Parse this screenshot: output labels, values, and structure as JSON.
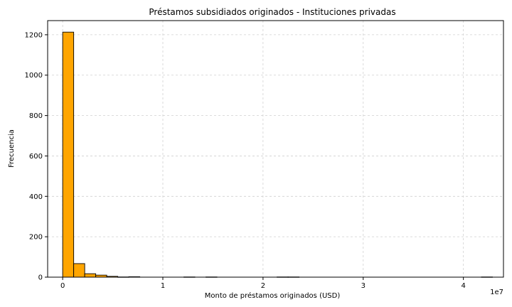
{
  "chart_data": {
    "type": "bar",
    "title": "Préstamos subsidiados originados - Instituciones privadas",
    "xlabel": "Monto de préstamos originados (USD)",
    "ylabel": "Frecuencia",
    "x_offset_label": "1e7",
    "x_scale_note": "x values in units of 1e7 USD",
    "xlim": [
      -0.15,
      4.4
    ],
    "ylim": [
      0,
      1270
    ],
    "x_ticks": [
      0,
      1,
      2,
      3,
      4
    ],
    "y_ticks": [
      0,
      200,
      400,
      600,
      800,
      1000,
      1200
    ],
    "grid": true,
    "bar_color": "#ffa500",
    "edge_color": "#000000",
    "bins": [
      {
        "x0": 0.0,
        "x1": 0.11,
        "count": 1213
      },
      {
        "x0": 0.11,
        "x1": 0.22,
        "count": 67
      },
      {
        "x0": 0.22,
        "x1": 0.33,
        "count": 17
      },
      {
        "x0": 0.33,
        "x1": 0.44,
        "count": 10
      },
      {
        "x0": 0.44,
        "x1": 0.55,
        "count": 4
      },
      {
        "x0": 0.55,
        "x1": 0.66,
        "count": 1
      },
      {
        "x0": 0.66,
        "x1": 0.77,
        "count": 2
      },
      {
        "x0": 1.21,
        "x1": 1.32,
        "count": 1
      },
      {
        "x0": 1.43,
        "x1": 1.54,
        "count": 1
      },
      {
        "x0": 2.14,
        "x1": 2.25,
        "count": 1
      },
      {
        "x0": 2.25,
        "x1": 2.36,
        "count": 1
      },
      {
        "x0": 4.18,
        "x1": 4.29,
        "count": 1
      }
    ]
  }
}
